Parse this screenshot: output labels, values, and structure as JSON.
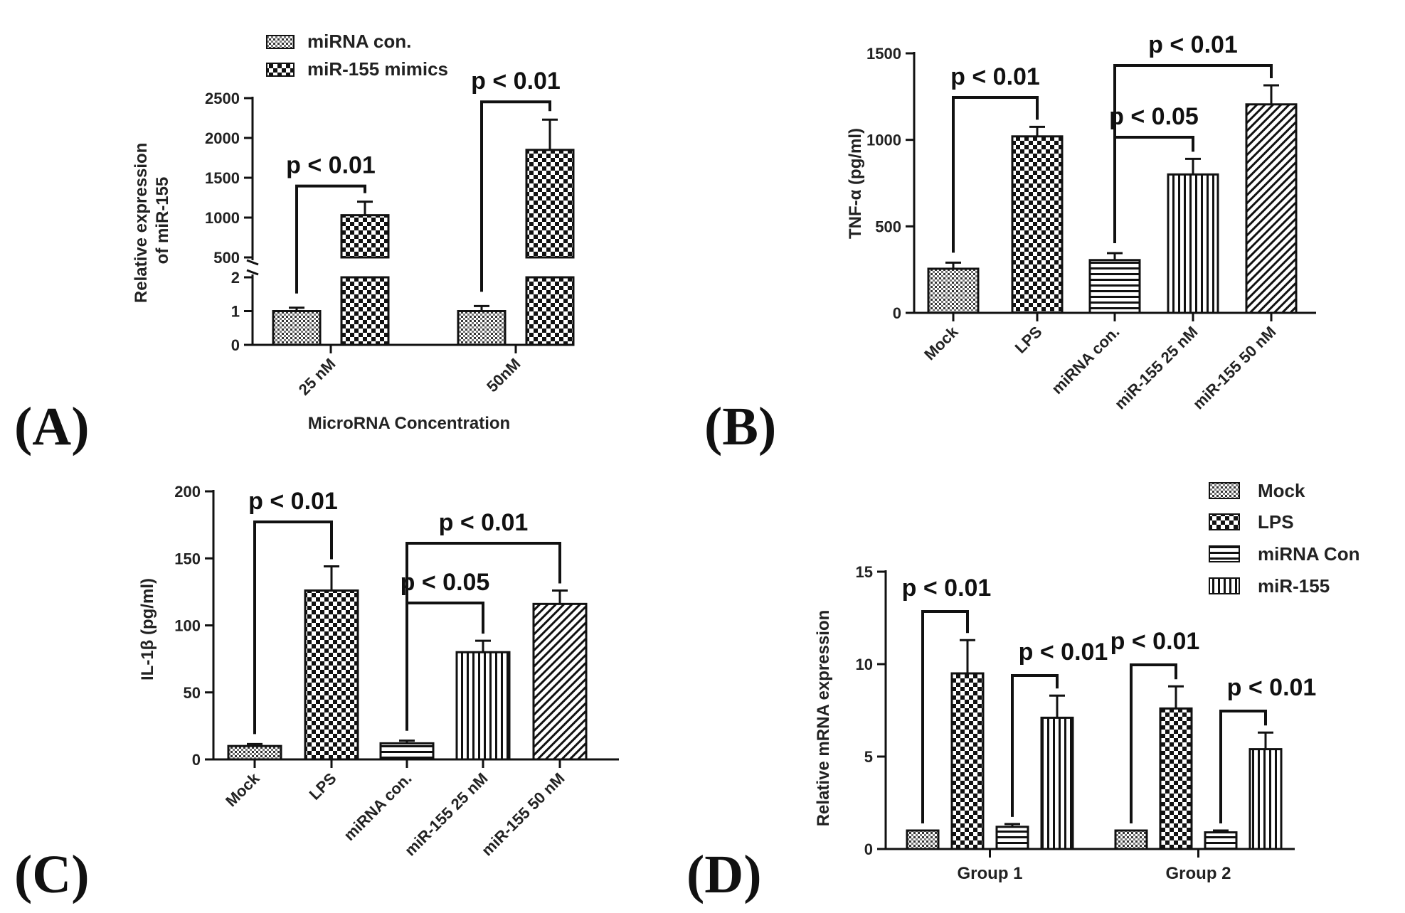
{
  "panel_labels": [
    "(A)",
    "(B)",
    "(C)",
    "(D)"
  ],
  "chart_data": [
    {
      "id": "A",
      "type": "bar",
      "ylabel_lines": [
        "Relative expression",
        "of miR-155"
      ],
      "xlabel": "MicroRNA Concentration",
      "categories": [
        "25 nM",
        "50nM"
      ],
      "series": [
        {
          "name": "miRNA con.",
          "pattern": "pat-dots",
          "values": [
            1,
            1
          ],
          "errors": [
            0.1,
            0.15
          ]
        },
        {
          "name": "miR-155 mimics",
          "pattern": "pat-check",
          "values": [
            1030,
            1850
          ],
          "errors": [
            170,
            380
          ]
        }
      ],
      "yaxis_broken": true,
      "ylim_lower": [
        0,
        2
      ],
      "yticks_lower": [
        "0",
        "1",
        "2"
      ],
      "ylim_upper": [
        500,
        2500
      ],
      "yticks_upper": [
        "500",
        "1000",
        "1500",
        "2000",
        "2500"
      ],
      "annotations": [
        {
          "text": "p < 0.01",
          "from": [
            0,
            0
          ],
          "to": [
            0,
            1
          ]
        },
        {
          "text": "p < 0.01",
          "from": [
            1,
            0
          ],
          "to": [
            1,
            1
          ]
        }
      ]
    },
    {
      "id": "B",
      "type": "bar",
      "ylabel": "TNF-α (pg/ml)",
      "categories": [
        "Mock",
        "LPS",
        "miRNA con.",
        "miR-155 25 nM",
        "miR-155 50 nM"
      ],
      "patterns": [
        "pat-dots",
        "pat-check",
        "pat-hlines",
        "pat-vlines",
        "pat-diag"
      ],
      "values": [
        255,
        1020,
        305,
        800,
        1205
      ],
      "errors": [
        35,
        55,
        40,
        90,
        110
      ],
      "ylim": [
        0,
        1500
      ],
      "yticks": [
        "0",
        "500",
        "1000",
        "1500"
      ],
      "annotations": [
        {
          "text": "p < 0.01",
          "from": 0,
          "to": 1
        },
        {
          "text": "p < 0.05",
          "from": 2,
          "to": 3
        },
        {
          "text": "p < 0.01",
          "from": 2,
          "to": 4
        }
      ]
    },
    {
      "id": "C",
      "type": "bar",
      "ylabel": "IL-1β  (pg/ml)",
      "categories": [
        "Mock",
        "LPS",
        "miRNA con.",
        "miR-155 25 nM",
        "miR-155 50 nM"
      ],
      "patterns": [
        "pat-dots",
        "pat-check",
        "pat-hlines",
        "pat-vlines",
        "pat-diag"
      ],
      "values": [
        10,
        126,
        12,
        80,
        116
      ],
      "errors": [
        1.5,
        18,
        2,
        8.5,
        10
      ],
      "ylim": [
        0,
        200
      ],
      "yticks": [
        "0",
        "50",
        "100",
        "150",
        "200"
      ],
      "annotations": [
        {
          "text": "p < 0.01",
          "from": 0,
          "to": 1
        },
        {
          "text": "p < 0.05",
          "from": 2,
          "to": 3
        },
        {
          "text": "p < 0.01",
          "from": 2,
          "to": 4
        }
      ]
    },
    {
      "id": "D",
      "type": "bar",
      "ylabel": "Relative mRNA expression",
      "categories": [
        "Group 1",
        "Group 2"
      ],
      "series": [
        {
          "name": "Mock",
          "pattern": "pat-dots",
          "values": [
            1,
            1
          ],
          "errors": [
            0,
            0
          ]
        },
        {
          "name": "LPS",
          "pattern": "pat-check",
          "values": [
            9.5,
            7.6
          ],
          "errors": [
            1.8,
            1.2
          ]
        },
        {
          "name": "miRNA Con",
          "pattern": "pat-hlines",
          "values": [
            1.2,
            0.9
          ],
          "errors": [
            0.15,
            0.1
          ]
        },
        {
          "name": "miR-155",
          "pattern": "pat-vlines",
          "values": [
            7.1,
            5.4
          ],
          "errors": [
            1.2,
            0.9
          ]
        }
      ],
      "ylim": [
        0,
        15
      ],
      "yticks": [
        "0",
        "5",
        "10",
        "15"
      ],
      "annotations": [
        {
          "text": "p < 0.01",
          "from": [
            0,
            0
          ],
          "to": [
            0,
            1
          ]
        },
        {
          "text": "p < 0.01",
          "from": [
            0,
            2
          ],
          "to": [
            0,
            3
          ]
        },
        {
          "text": "p < 0.01",
          "from": [
            1,
            0
          ],
          "to": [
            1,
            1
          ]
        },
        {
          "text": "p < 0.01",
          "from": [
            1,
            2
          ],
          "to": [
            1,
            3
          ]
        }
      ]
    }
  ]
}
